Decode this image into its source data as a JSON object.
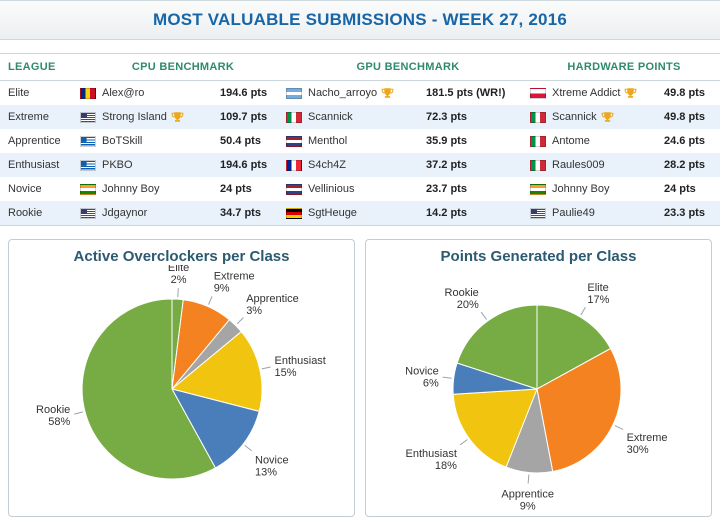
{
  "header": {
    "title": "MOST VALUABLE SUBMISSIONS - WEEK 27, 2016"
  },
  "table": {
    "columns": [
      "LEAGUE",
      "CPU BENCHMARK",
      "GPU BENCHMARK",
      "HARDWARE POINTS"
    ],
    "rows": [
      {
        "league": "Elite",
        "cpu": {
          "flag": "ro",
          "name": "Alex@ro",
          "trophy": false,
          "pts": "194.6 pts"
        },
        "gpu": {
          "flag": "ar",
          "name": "Nacho_arroyo",
          "trophy": true,
          "pts": "181.5 pts (WR!)"
        },
        "hw": {
          "flag": "pl",
          "name": "Xtreme Addict",
          "trophy": true,
          "pts": "49.8 pts"
        }
      },
      {
        "league": "Extreme",
        "cpu": {
          "flag": "us",
          "name": "Strong Island",
          "trophy": true,
          "pts": "109.7 pts"
        },
        "gpu": {
          "flag": "it",
          "name": "Scannick",
          "trophy": false,
          "pts": "72.3 pts"
        },
        "hw": {
          "flag": "it",
          "name": "Scannick",
          "trophy": true,
          "pts": "49.8 pts"
        }
      },
      {
        "league": "Apprentice",
        "cpu": {
          "flag": "gr",
          "name": "BoTSkill",
          "trophy": false,
          "pts": "50.4 pts"
        },
        "gpu": {
          "flag": "nl",
          "name": "Menthol",
          "trophy": false,
          "pts": "35.9 pts"
        },
        "hw": {
          "flag": "it",
          "name": "Antome",
          "trophy": false,
          "pts": "24.6 pts"
        }
      },
      {
        "league": "Enthusiast",
        "cpu": {
          "flag": "gr",
          "name": "PKBO",
          "trophy": false,
          "pts": "194.6 pts"
        },
        "gpu": {
          "flag": "fr",
          "name": "S4ch4Z",
          "trophy": false,
          "pts": "37.2 pts"
        },
        "hw": {
          "flag": "it",
          "name": "Raules009",
          "trophy": false,
          "pts": "28.2 pts"
        }
      },
      {
        "league": "Novice",
        "cpu": {
          "flag": "in",
          "name": "Johnny Boy",
          "trophy": false,
          "pts": "24 pts"
        },
        "gpu": {
          "flag": "nl",
          "name": "Vellinious",
          "trophy": false,
          "pts": "23.7 pts"
        },
        "hw": {
          "flag": "in",
          "name": "Johnny Boy",
          "trophy": false,
          "pts": "24 pts"
        }
      },
      {
        "league": "Rookie",
        "cpu": {
          "flag": "us",
          "name": "Jdgaynor",
          "trophy": false,
          "pts": "34.7 pts"
        },
        "gpu": {
          "flag": "de",
          "name": "SgtHeuge",
          "trophy": false,
          "pts": "14.2 pts"
        },
        "hw": {
          "flag": "us",
          "name": "Paulie49",
          "trophy": false,
          "pts": "23.3 pts"
        }
      }
    ]
  },
  "chart_data": [
    {
      "type": "pie",
      "title": "Active Overclockers per Class",
      "categories": [
        "Elite",
        "Extreme",
        "Apprentice",
        "Enthusiast",
        "Novice",
        "Rookie"
      ],
      "values": [
        2,
        9,
        3,
        15,
        13,
        58
      ],
      "unit": "%",
      "legend": "none",
      "label_format": "name + percent"
    },
    {
      "type": "pie",
      "title": "Points Generated per Class",
      "categories": [
        "Elite",
        "Extreme",
        "Apprentice",
        "Enthusiast",
        "Novice",
        "Rookie"
      ],
      "values": [
        17,
        30,
        9,
        18,
        6,
        20
      ],
      "unit": "%",
      "legend": "none",
      "label_format": "name + percent"
    }
  ],
  "colors": {
    "palette": [
      "#77ab43",
      "#f58220",
      "#a5a5a5",
      "#f1c40f",
      "#4a7ebb"
    ],
    "title_blue": "#1766a8",
    "table_header_green": "#2f8a6f",
    "row_stripe": "#e9f2fa",
    "trophy_gold": "#eda71c"
  }
}
